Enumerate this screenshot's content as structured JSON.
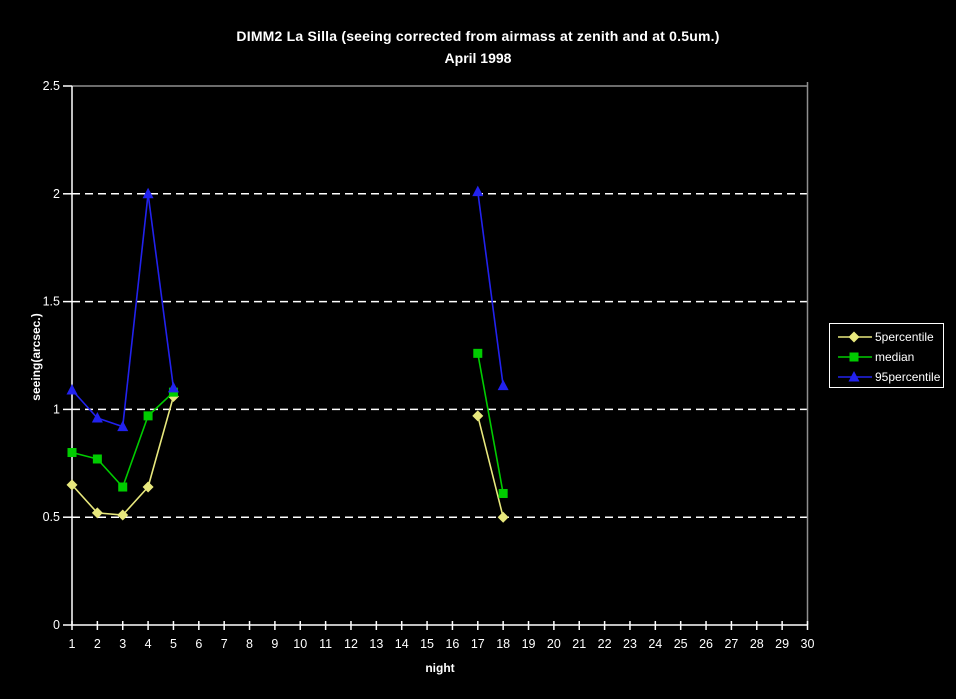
{
  "background_color": "#000000",
  "text_color": "#ffffff",
  "chart_data": {
    "type": "line",
    "title": "DIMM2 La Silla (seeing corrected from airmass at zenith and at 0.5um.)",
    "subtitle": "April 1998",
    "xlabel": "night",
    "ylabel": "seeing(arcsec.)",
    "xlim": [
      1,
      30
    ],
    "ylim": [
      0,
      2.5
    ],
    "x_ticks": [
      1,
      2,
      3,
      4,
      5,
      6,
      7,
      8,
      9,
      10,
      11,
      12,
      13,
      14,
      15,
      16,
      17,
      18,
      19,
      20,
      21,
      22,
      23,
      24,
      25,
      26,
      27,
      28,
      29,
      30
    ],
    "y_tick_values": [
      0,
      0.5,
      1,
      1.5,
      2,
      2.5
    ],
    "y_tick_labels": [
      "0",
      "0.5",
      "1",
      "1.5",
      "2",
      "2.5"
    ],
    "y_grid_values": [
      0.5,
      1,
      1.5,
      2
    ],
    "grid_style": "dashed-horizontal",
    "legend_position": "right",
    "axis_color": "#ffffff",
    "border_color": "#8f8f8f",
    "grid_color": "#ffffff",
    "series": [
      {
        "name": "5percentile",
        "color": "#e8e87d",
        "marker": "diamond",
        "points": [
          [
            1,
            0.65
          ],
          [
            2,
            0.52
          ],
          [
            3,
            0.51
          ],
          [
            4,
            0.64
          ],
          [
            5,
            1.06
          ],
          [
            17,
            0.97
          ],
          [
            18,
            0.5
          ]
        ]
      },
      {
        "name": "median",
        "color": "#00cc00",
        "marker": "square",
        "points": [
          [
            1,
            0.8
          ],
          [
            2,
            0.77
          ],
          [
            3,
            0.64
          ],
          [
            4,
            0.97
          ],
          [
            5,
            1.08
          ],
          [
            17,
            1.26
          ],
          [
            18,
            0.61
          ]
        ]
      },
      {
        "name": "95percentile",
        "color": "#2222ee",
        "marker": "triangle",
        "points": [
          [
            1,
            1.09
          ],
          [
            2,
            0.96
          ],
          [
            3,
            0.92
          ],
          [
            4,
            2.0
          ],
          [
            5,
            1.1
          ],
          [
            17,
            2.01
          ],
          [
            18,
            1.11
          ]
        ]
      }
    ]
  }
}
